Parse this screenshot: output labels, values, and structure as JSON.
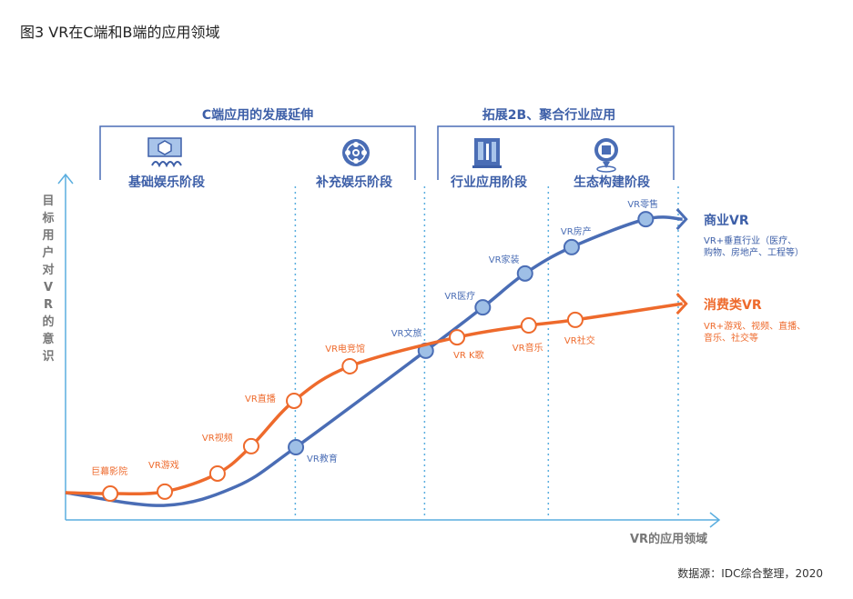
{
  "title": "图3 VR在C端和B端的应用领域",
  "source": "数据源：IDC综合整理，2020",
  "phases": [
    {
      "label": "C端应用的发展延伸",
      "stages": [
        {
          "label": "基础娱乐阶段",
          "icon": "vr-headset-icon"
        },
        {
          "label": "补充娱乐阶段",
          "icon": "film-reel-icon"
        }
      ]
    },
    {
      "label": "拓展2B、聚合行业应用",
      "stages": [
        {
          "label": "行业应用阶段",
          "icon": "industry-book-icon"
        },
        {
          "label": "生态构建阶段",
          "icon": "location-pin-icon"
        }
      ]
    }
  ],
  "colors": {
    "business": "#4a6db5",
    "consumer": "#ee6a2c",
    "axis": "#5aaedf",
    "bracket": "#4a6db5"
  },
  "chart_data": {
    "type": "line",
    "title": "图3 VR在C端和B端的应用领域",
    "xlabel": "VR的应用领域",
    "ylabel": "目标用户对VR的意识",
    "xlim": [
      0,
      100
    ],
    "ylim": [
      0,
      100
    ],
    "stage_dividers": [
      37.5,
      58.6,
      78.8,
      100
    ],
    "series": [
      {
        "name": "商业VR",
        "description": "VR+垂直行业（医疗、\n购物、房地产、工程等）",
        "points": [
          {
            "label": "",
            "x": 0,
            "y": 8.3,
            "marker": false
          },
          {
            "label": "",
            "x": 16,
            "y": 4.4,
            "marker": false
          },
          {
            "label": "",
            "x": 27.9,
            "y": 10.2,
            "marker": false
          },
          {
            "label": "VR教育",
            "x": 37.6,
            "y": 22.1,
            "marker": true
          },
          {
            "label": "VR文旅",
            "x": 58.8,
            "y": 51.4,
            "marker": true
          },
          {
            "label": "VR医疗",
            "x": 68.1,
            "y": 64.6,
            "marker": true
          },
          {
            "label": "VR家装",
            "x": 75.0,
            "y": 74.9,
            "marker": true
          },
          {
            "label": "VR房产",
            "x": 82.6,
            "y": 82.9,
            "marker": true
          },
          {
            "label": "VR零售",
            "x": 94.7,
            "y": 91.4,
            "marker": true
          },
          {
            "label": "",
            "x": 100.7,
            "y": 91.4,
            "marker": false
          }
        ]
      },
      {
        "name": "消费类VR",
        "description": "VR+游戏、视频、直播、\n音乐、社交等",
        "points": [
          {
            "label": "",
            "x": 0,
            "y": 8.3,
            "marker": false
          },
          {
            "label": "巨幕影院",
            "x": 7.3,
            "y": 8.0,
            "marker": true
          },
          {
            "label": "VR游戏",
            "x": 16.2,
            "y": 8.6,
            "marker": true
          },
          {
            "label": "",
            "x": 24.8,
            "y": 14.1,
            "marker": true
          },
          {
            "label": "VR视频",
            "x": 30.3,
            "y": 22.4,
            "marker": true
          },
          {
            "label": "VR直播",
            "x": 37.3,
            "y": 36.2,
            "marker": true
          },
          {
            "label": "VR电竞馆",
            "x": 46.4,
            "y": 46.7,
            "marker": true
          },
          {
            "label": "VR K歌",
            "x": 63.9,
            "y": 55.5,
            "marker": true
          },
          {
            "label": "VR音乐",
            "x": 75.6,
            "y": 59.1,
            "marker": true
          },
          {
            "label": "VR社交",
            "x": 83.2,
            "y": 60.8,
            "marker": true
          },
          {
            "label": "",
            "x": 100.7,
            "y": 65.7,
            "marker": false
          }
        ]
      }
    ]
  }
}
